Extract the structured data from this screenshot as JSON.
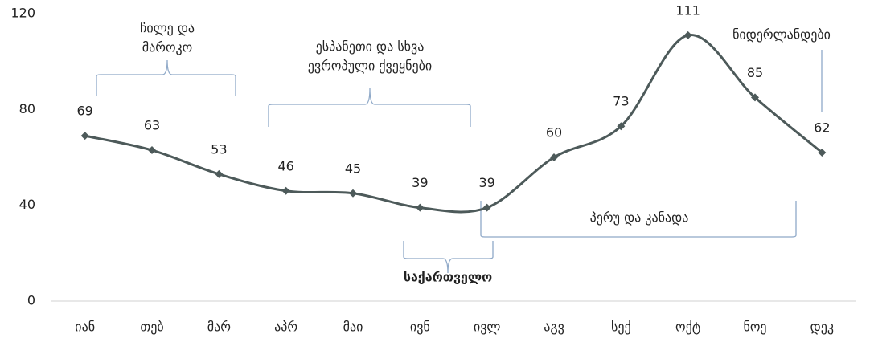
{
  "chart_data": {
    "type": "line",
    "categories": [
      "იან",
      "თებ",
      "მარ",
      "აპრ",
      "მაი",
      "ივნ",
      "ივლ",
      "აგვ",
      "სექ",
      "ოქტ",
      "ნოე",
      "დეკ"
    ],
    "series": [
      {
        "color": "#4d5a5a",
        "values": [
          69,
          63,
          53,
          46,
          45,
          39,
          39,
          60,
          73,
          111,
          85,
          62
        ]
      }
    ],
    "ylim": [
      0,
      120
    ],
    "yticks": [
      0,
      40,
      80,
      120
    ],
    "grid": false,
    "annotations": [
      {
        "lines": [
          "ჩილე და",
          "მაროკო"
        ]
      },
      {
        "lines": [
          "ესპანეთი და სხვა",
          "ევროპული ქვეყნები"
        ]
      },
      {
        "lines": [
          "საქართველო"
        ]
      },
      {
        "lines": [
          "პერუ და კანადა"
        ]
      },
      {
        "lines": [
          "ნიდერლანდები"
        ]
      }
    ]
  }
}
